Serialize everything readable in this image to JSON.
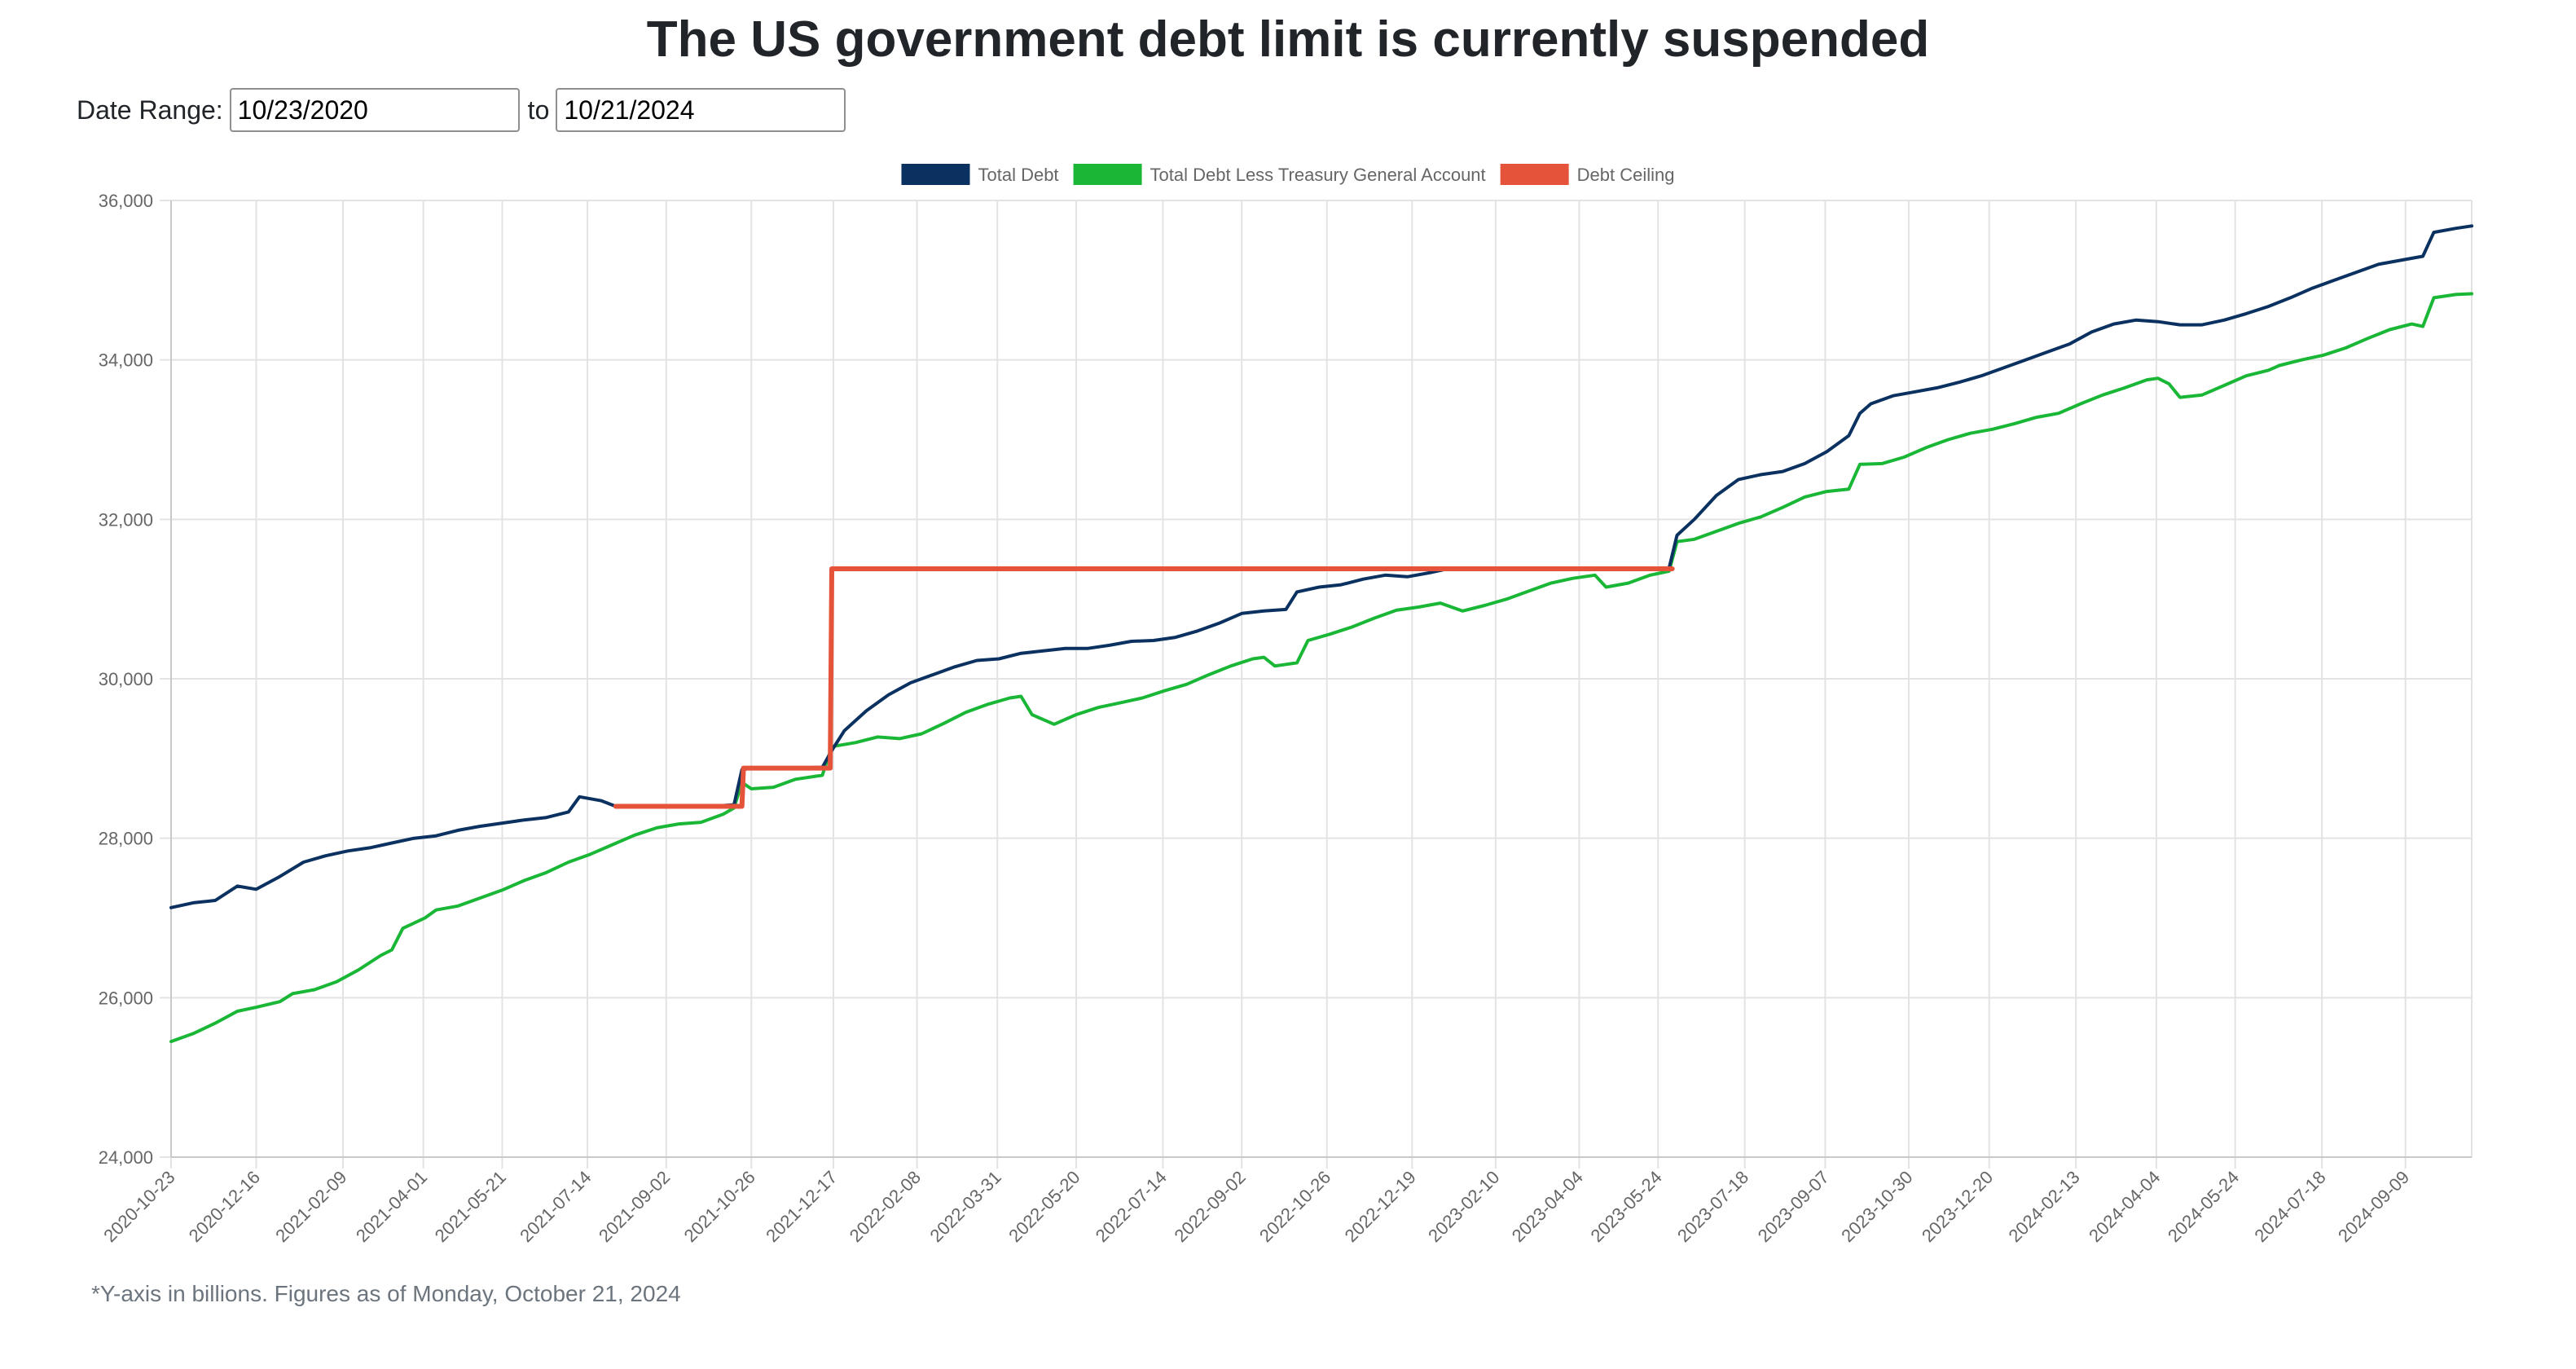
{
  "page": {
    "title": "The US government debt limit is currently suspended",
    "footnote": "*Y-axis in billions. Figures as of Monday, October 21, 2024"
  },
  "date_range": {
    "label": "Date Range:",
    "separator": "to",
    "start": "10/23/2020",
    "end": "10/21/2024"
  },
  "chart_data": {
    "type": "line",
    "title": "",
    "xlabel": "",
    "ylabel": "",
    "x_range": [
      "2020-10-23",
      "2024-10-21"
    ],
    "ylim": [
      24000,
      36000
    ],
    "y_ticks": [
      24000,
      26000,
      28000,
      30000,
      32000,
      34000,
      36000
    ],
    "x_tick_labels": [
      "2020-10-23",
      "2020-12-16",
      "2021-02-09",
      "2021-04-01",
      "2021-05-21",
      "2021-07-14",
      "2021-09-02",
      "2021-10-26",
      "2021-12-17",
      "2022-02-08",
      "2022-03-31",
      "2022-05-20",
      "2022-07-14",
      "2022-09-02",
      "2022-10-26",
      "2022-12-19",
      "2023-02-10",
      "2023-04-04",
      "2023-05-24",
      "2023-07-18",
      "2023-09-07",
      "2023-10-30",
      "2023-12-20",
      "2024-02-13",
      "2024-04-04",
      "2024-05-24",
      "2024-07-18",
      "2024-09-09"
    ],
    "grid": true,
    "legend_position": "top",
    "series": [
      {
        "name": "Total Debt",
        "color": "#0b3161",
        "points": [
          [
            "2020-10-23",
            27130
          ],
          [
            "2020-11-06",
            27190
          ],
          [
            "2020-11-20",
            27220
          ],
          [
            "2020-12-04",
            27400
          ],
          [
            "2020-12-16",
            27360
          ],
          [
            "2020-12-31",
            27520
          ],
          [
            "2021-01-15",
            27700
          ],
          [
            "2021-01-29",
            27780
          ],
          [
            "2021-02-12",
            27840
          ],
          [
            "2021-02-26",
            27880
          ],
          [
            "2021-03-12",
            27940
          ],
          [
            "2021-03-26",
            28000
          ],
          [
            "2021-04-09",
            28030
          ],
          [
            "2021-04-23",
            28100
          ],
          [
            "2021-05-07",
            28150
          ],
          [
            "2021-05-21",
            28190
          ],
          [
            "2021-06-04",
            28230
          ],
          [
            "2021-06-18",
            28260
          ],
          [
            "2021-07-02",
            28330
          ],
          [
            "2021-07-09",
            28520
          ],
          [
            "2021-07-23",
            28470
          ],
          [
            "2021-08-01",
            28400
          ],
          [
            "2021-08-15",
            28400
          ],
          [
            "2021-09-01",
            28400
          ],
          [
            "2021-09-15",
            28400
          ],
          [
            "2021-10-01",
            28400
          ],
          [
            "2021-10-15",
            28420
          ],
          [
            "2021-10-20",
            28860
          ],
          [
            "2021-10-26",
            28880
          ],
          [
            "2021-11-15",
            28880
          ],
          [
            "2021-12-10",
            28890
          ],
          [
            "2021-12-16",
            29100
          ],
          [
            "2021-12-24",
            29350
          ],
          [
            "2022-01-07",
            29600
          ],
          [
            "2022-01-21",
            29800
          ],
          [
            "2022-02-04",
            29950
          ],
          [
            "2022-02-18",
            30050
          ],
          [
            "2022-03-04",
            30150
          ],
          [
            "2022-03-18",
            30230
          ],
          [
            "2022-04-01",
            30250
          ],
          [
            "2022-04-15",
            30320
          ],
          [
            "2022-04-29",
            30350
          ],
          [
            "2022-05-13",
            30380
          ],
          [
            "2022-05-27",
            30380
          ],
          [
            "2022-06-10",
            30420
          ],
          [
            "2022-06-24",
            30470
          ],
          [
            "2022-07-08",
            30480
          ],
          [
            "2022-07-22",
            30520
          ],
          [
            "2022-08-05",
            30600
          ],
          [
            "2022-08-19",
            30700
          ],
          [
            "2022-09-02",
            30820
          ],
          [
            "2022-09-16",
            30850
          ],
          [
            "2022-09-30",
            30870
          ],
          [
            "2022-10-07",
            31090
          ],
          [
            "2022-10-21",
            31150
          ],
          [
            "2022-11-04",
            31180
          ],
          [
            "2022-11-18",
            31250
          ],
          [
            "2022-12-02",
            31300
          ],
          [
            "2022-12-16",
            31280
          ],
          [
            "2022-12-30",
            31330
          ],
          [
            "2023-01-13",
            31390
          ],
          [
            "2023-02-10",
            31390
          ],
          [
            "2023-03-10",
            31390
          ],
          [
            "2023-04-07",
            31390
          ],
          [
            "2023-05-05",
            31390
          ],
          [
            "2023-05-31",
            31390
          ],
          [
            "2023-06-05",
            31800
          ],
          [
            "2023-06-16",
            32000
          ],
          [
            "2023-06-30",
            32300
          ],
          [
            "2023-07-14",
            32500
          ],
          [
            "2023-07-28",
            32560
          ],
          [
            "2023-08-11",
            32600
          ],
          [
            "2023-08-25",
            32700
          ],
          [
            "2023-09-08",
            32850
          ],
          [
            "2023-09-22",
            33050
          ],
          [
            "2023-09-29",
            33330
          ],
          [
            "2023-10-06",
            33450
          ],
          [
            "2023-10-20",
            33550
          ],
          [
            "2023-11-03",
            33600
          ],
          [
            "2023-11-17",
            33650
          ],
          [
            "2023-12-01",
            33720
          ],
          [
            "2023-12-15",
            33800
          ],
          [
            "2023-12-29",
            33900
          ],
          [
            "2024-01-12",
            34000
          ],
          [
            "2024-01-26",
            34100
          ],
          [
            "2024-02-09",
            34200
          ],
          [
            "2024-02-23",
            34350
          ],
          [
            "2024-03-08",
            34450
          ],
          [
            "2024-03-22",
            34500
          ],
          [
            "2024-04-05",
            34480
          ],
          [
            "2024-04-19",
            34440
          ],
          [
            "2024-05-03",
            34440
          ],
          [
            "2024-05-17",
            34500
          ],
          [
            "2024-05-31",
            34580
          ],
          [
            "2024-06-14",
            34670
          ],
          [
            "2024-06-28",
            34780
          ],
          [
            "2024-07-12",
            34900
          ],
          [
            "2024-07-26",
            35000
          ],
          [
            "2024-08-09",
            35100
          ],
          [
            "2024-08-23",
            35200
          ],
          [
            "2024-09-06",
            35250
          ],
          [
            "2024-09-20",
            35300
          ],
          [
            "2024-09-27",
            35600
          ],
          [
            "2024-10-11",
            35650
          ],
          [
            "2024-10-21",
            35680
          ]
        ]
      },
      {
        "name": "Total Debt Less Treasury General Account",
        "color": "#1ab737",
        "points": [
          [
            "2020-10-23",
            25450
          ],
          [
            "2020-11-06",
            25550
          ],
          [
            "2020-11-20",
            25680
          ],
          [
            "2020-12-04",
            25830
          ],
          [
            "2020-12-16",
            25880
          ],
          [
            "2020-12-31",
            25950
          ],
          [
            "2021-01-08",
            26050
          ],
          [
            "2021-01-22",
            26100
          ],
          [
            "2021-02-05",
            26200
          ],
          [
            "2021-02-19",
            26350
          ],
          [
            "2021-03-05",
            26530
          ],
          [
            "2021-03-12",
            26600
          ],
          [
            "2021-03-19",
            26870
          ],
          [
            "2021-04-02",
            27000
          ],
          [
            "2021-04-09",
            27100
          ],
          [
            "2021-04-23",
            27150
          ],
          [
            "2021-05-07",
            27250
          ],
          [
            "2021-05-21",
            27350
          ],
          [
            "2021-06-04",
            27470
          ],
          [
            "2021-06-18",
            27570
          ],
          [
            "2021-07-02",
            27700
          ],
          [
            "2021-07-16",
            27800
          ],
          [
            "2021-07-30",
            27920
          ],
          [
            "2021-08-13",
            28040
          ],
          [
            "2021-08-27",
            28130
          ],
          [
            "2021-09-10",
            28180
          ],
          [
            "2021-09-24",
            28200
          ],
          [
            "2021-10-08",
            28300
          ],
          [
            "2021-10-15",
            28380
          ],
          [
            "2021-10-20",
            28700
          ],
          [
            "2021-10-26",
            28620
          ],
          [
            "2021-11-09",
            28640
          ],
          [
            "2021-11-23",
            28740
          ],
          [
            "2021-12-10",
            28790
          ],
          [
            "2021-12-16",
            29150
          ],
          [
            "2021-12-31",
            29200
          ],
          [
            "2022-01-14",
            29270
          ],
          [
            "2022-01-28",
            29250
          ],
          [
            "2022-02-11",
            29310
          ],
          [
            "2022-02-25",
            29440
          ],
          [
            "2022-03-11",
            29580
          ],
          [
            "2022-03-25",
            29680
          ],
          [
            "2022-04-08",
            29760
          ],
          [
            "2022-04-15",
            29780
          ],
          [
            "2022-04-22",
            29550
          ],
          [
            "2022-05-06",
            29430
          ],
          [
            "2022-05-20",
            29550
          ],
          [
            "2022-06-03",
            29640
          ],
          [
            "2022-06-17",
            29700
          ],
          [
            "2022-07-01",
            29760
          ],
          [
            "2022-07-15",
            29850
          ],
          [
            "2022-07-29",
            29930
          ],
          [
            "2022-08-12",
            30050
          ],
          [
            "2022-08-26",
            30160
          ],
          [
            "2022-09-09",
            30250
          ],
          [
            "2022-09-16",
            30270
          ],
          [
            "2022-09-23",
            30160
          ],
          [
            "2022-10-07",
            30200
          ],
          [
            "2022-10-14",
            30480
          ],
          [
            "2022-10-28",
            30560
          ],
          [
            "2022-11-11",
            30650
          ],
          [
            "2022-11-25",
            30760
          ],
          [
            "2022-12-09",
            30860
          ],
          [
            "2022-12-23",
            30900
          ],
          [
            "2023-01-06",
            30950
          ],
          [
            "2023-01-20",
            30850
          ],
          [
            "2023-02-03",
            30920
          ],
          [
            "2023-02-17",
            31000
          ],
          [
            "2023-03-03",
            31100
          ],
          [
            "2023-03-17",
            31200
          ],
          [
            "2023-03-31",
            31260
          ],
          [
            "2023-04-14",
            31300
          ],
          [
            "2023-04-21",
            31150
          ],
          [
            "2023-05-05",
            31200
          ],
          [
            "2023-05-19",
            31300
          ],
          [
            "2023-05-31",
            31350
          ],
          [
            "2023-06-05",
            31720
          ],
          [
            "2023-06-16",
            31750
          ],
          [
            "2023-06-30",
            31850
          ],
          [
            "2023-07-14",
            31950
          ],
          [
            "2023-07-28",
            32030
          ],
          [
            "2023-08-11",
            32150
          ],
          [
            "2023-08-25",
            32280
          ],
          [
            "2023-09-08",
            32350
          ],
          [
            "2023-09-22",
            32380
          ],
          [
            "2023-09-29",
            32690
          ],
          [
            "2023-10-13",
            32700
          ],
          [
            "2023-10-27",
            32780
          ],
          [
            "2023-11-10",
            32900
          ],
          [
            "2023-11-24",
            33000
          ],
          [
            "2023-12-08",
            33080
          ],
          [
            "2023-12-22",
            33130
          ],
          [
            "2024-01-05",
            33200
          ],
          [
            "2024-01-19",
            33280
          ],
          [
            "2024-02-02",
            33330
          ],
          [
            "2024-02-16",
            33450
          ],
          [
            "2024-03-01",
            33560
          ],
          [
            "2024-03-15",
            33650
          ],
          [
            "2024-03-29",
            33750
          ],
          [
            "2024-04-05",
            33770
          ],
          [
            "2024-04-12",
            33700
          ],
          [
            "2024-04-19",
            33530
          ],
          [
            "2024-05-03",
            33560
          ],
          [
            "2024-05-17",
            33680
          ],
          [
            "2024-05-31",
            33800
          ],
          [
            "2024-06-14",
            33870
          ],
          [
            "2024-06-21",
            33930
          ],
          [
            "2024-07-05",
            34000
          ],
          [
            "2024-07-19",
            34060
          ],
          [
            "2024-08-02",
            34150
          ],
          [
            "2024-08-16",
            34270
          ],
          [
            "2024-08-30",
            34380
          ],
          [
            "2024-09-13",
            34450
          ],
          [
            "2024-09-20",
            34420
          ],
          [
            "2024-09-27",
            34780
          ],
          [
            "2024-10-11",
            34820
          ],
          [
            "2024-10-21",
            34830
          ]
        ]
      },
      {
        "name": "Debt Ceiling",
        "color": "#e5533a",
        "points": [
          [
            "2021-08-01",
            28400
          ],
          [
            "2021-10-20",
            28400
          ],
          [
            "2021-10-21",
            28880
          ],
          [
            "2021-12-15",
            28880
          ],
          [
            "2021-12-16",
            31380
          ],
          [
            "2023-06-02",
            31380
          ]
        ]
      }
    ]
  }
}
